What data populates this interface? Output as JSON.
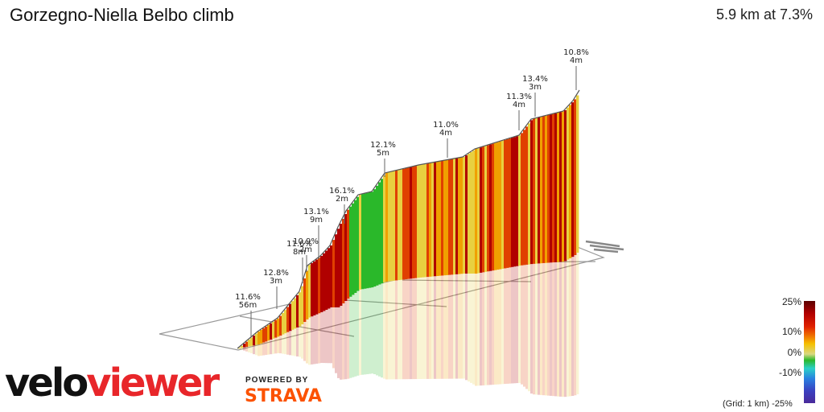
{
  "header": {
    "title": "Gorzegno-Niella Belbo climb",
    "summary": "5.9 km at 7.3%"
  },
  "branding": {
    "logo_part1": "velo",
    "logo_part2": "viewer",
    "powered_by": "POWERED BY",
    "strava": "STRAVA"
  },
  "legend": {
    "labels": [
      "25%",
      "10%",
      "0%",
      "-10%",
      "-25%"
    ],
    "grid_note": "(Grid: 1 km)"
  },
  "chart_data": {
    "type": "area",
    "title": "Gorzegno-Niella Belbo climb",
    "subtitle": "5.9 km at 7.3%",
    "xlabel": "",
    "ylabel": "",
    "distance_km": 5.9,
    "avg_gradient_pct": 7.3,
    "annotations": [
      {
        "gradient": "11.6%",
        "length": "56m"
      },
      {
        "gradient": "12.8%",
        "length": "3m"
      },
      {
        "gradient": "11.6%",
        "length": "8m"
      },
      {
        "gradient": "10.9%",
        "length": "2m"
      },
      {
        "gradient": "13.1%",
        "length": "9m"
      },
      {
        "gradient": "16.1%",
        "length": "2m"
      },
      {
        "gradient": "12.1%",
        "length": "5m"
      },
      {
        "gradient": "11.0%",
        "length": "4m"
      },
      {
        "gradient": "11.3%",
        "length": "4m"
      },
      {
        "gradient": "13.4%",
        "length": "3m"
      },
      {
        "gradient": "10.8%",
        "length": "4m"
      }
    ],
    "colors": {
      "steep": "#b00000",
      "hard": "#e04000",
      "medium": "#f0a000",
      "moderate": "#e8d040",
      "flat": "#2ab82a"
    }
  }
}
